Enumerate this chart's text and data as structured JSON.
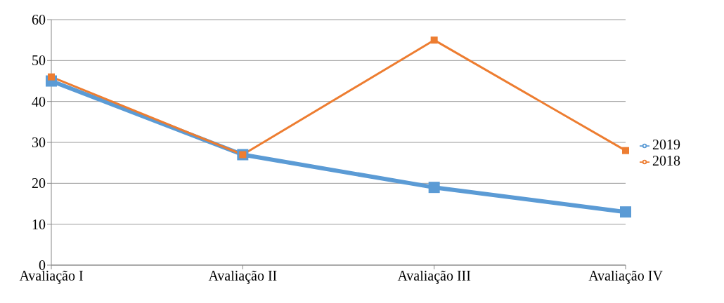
{
  "chart_data": {
    "type": "line",
    "categories": [
      "Avaliação I",
      "Avaliação II",
      "Avaliação III",
      "Avaliação IV"
    ],
    "series": [
      {
        "name": "2019",
        "color": "#5b9bd5",
        "values": [
          45,
          27,
          19,
          13
        ]
      },
      {
        "name": "2018",
        "color": "#ed7d31",
        "values": [
          46,
          27,
          55,
          28
        ]
      }
    ],
    "ylim": [
      0,
      60
    ],
    "yticks": [
      0,
      10,
      20,
      30,
      40,
      50,
      60
    ],
    "grid": "y",
    "legend": "right",
    "marker": "square",
    "line_style": "solid"
  }
}
